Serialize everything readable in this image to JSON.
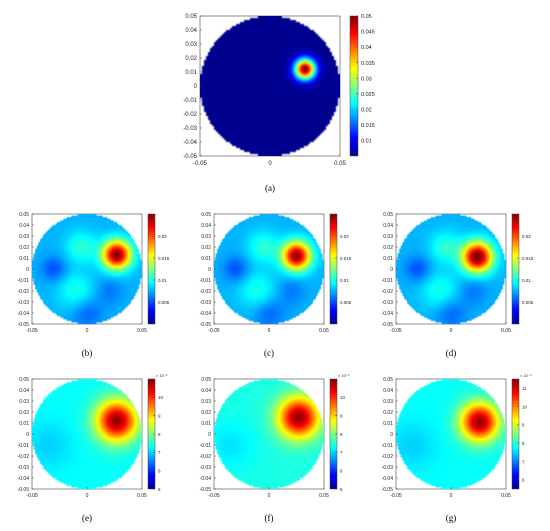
{
  "jet_colors": [
    "#00008f",
    "#0000ff",
    "#0080ff",
    "#00ffff",
    "#80ff80",
    "#ffff00",
    "#ff8000",
    "#ff0000",
    "#800000"
  ],
  "chart_data": [
    {
      "type": "heatmap",
      "caption": "(a)",
      "xlim": [
        -0.05,
        0.05
      ],
      "ylim": [
        -0.05,
        0.05
      ],
      "x_ticks": [
        "-0.05",
        "0",
        "0.05"
      ],
      "y_ticks": [
        "0.05",
        "0.04",
        "0.03",
        "0.02",
        "0.01",
        "0",
        "-0.01",
        "-0.02",
        "-0.03",
        "-0.04",
        "-0.05"
      ],
      "colorbar": {
        "range": [
          0.005,
          0.05
        ],
        "ticks": [
          "0.05",
          "0.045",
          "0.04",
          "0.035",
          "0.03",
          "0.025",
          "0.02",
          "0.015",
          "0.01"
        ],
        "exponent": ""
      },
      "background_level": 0.0,
      "blobs": [
        {
          "x": 0.025,
          "y": 0.012,
          "amp": 1.0,
          "sigma": 0.0052
        }
      ]
    },
    {
      "type": "heatmap",
      "caption": "(b)",
      "xlim": [
        -0.05,
        0.05
      ],
      "ylim": [
        -0.05,
        0.05
      ],
      "x_ticks": [
        "-0.05",
        "0",
        "0.05"
      ],
      "y_ticks": [
        "0.05",
        "0.04",
        "0.03",
        "0.02",
        "0.01",
        "0",
        "-0.01",
        "-0.02",
        "-0.03",
        "-0.04",
        "-0.05"
      ],
      "colorbar": {
        "range": [
          0.0,
          0.025
        ],
        "ticks": [
          "0.02",
          "0.015",
          "0.01",
          "0.005"
        ],
        "exponent": ""
      },
      "background_level": 0.3,
      "blobs": [
        {
          "x": 0.027,
          "y": 0.013,
          "amp": 0.7,
          "sigma": 0.009
        },
        {
          "x": -0.005,
          "y": 0.02,
          "amp": 0.12,
          "sigma": 0.01
        },
        {
          "x": -0.01,
          "y": -0.02,
          "amp": 0.1,
          "sigma": 0.012
        },
        {
          "x": -0.03,
          "y": 0.0,
          "amp": -0.1,
          "sigma": 0.008
        },
        {
          "x": 0.0,
          "y": -0.04,
          "amp": -0.08,
          "sigma": 0.01
        },
        {
          "x": 0.02,
          "y": -0.02,
          "amp": -0.06,
          "sigma": 0.009
        }
      ]
    },
    {
      "type": "heatmap",
      "caption": "(c)",
      "xlim": [
        -0.05,
        0.05
      ],
      "ylim": [
        -0.05,
        0.05
      ],
      "x_ticks": [
        "-0.05",
        "0",
        "0.05"
      ],
      "y_ticks": [
        "0.05",
        "0.04",
        "0.03",
        "0.02",
        "0.01",
        "0",
        "-0.01",
        "-0.02",
        "-0.03",
        "-0.04",
        "-0.05"
      ],
      "colorbar": {
        "range": [
          0.0,
          0.025
        ],
        "ticks": [
          "0.02",
          "0.015",
          "0.01",
          "0.005"
        ],
        "exponent": ""
      },
      "background_level": 0.3,
      "blobs": [
        {
          "x": 0.025,
          "y": 0.012,
          "amp": 0.68,
          "sigma": 0.009
        },
        {
          "x": -0.005,
          "y": 0.02,
          "amp": 0.12,
          "sigma": 0.01
        },
        {
          "x": -0.01,
          "y": -0.02,
          "amp": 0.1,
          "sigma": 0.012
        },
        {
          "x": -0.03,
          "y": 0.0,
          "amp": -0.1,
          "sigma": 0.008
        },
        {
          "x": 0.0,
          "y": -0.04,
          "amp": -0.08,
          "sigma": 0.01
        },
        {
          "x": 0.02,
          "y": -0.02,
          "amp": -0.06,
          "sigma": 0.009
        }
      ]
    },
    {
      "type": "heatmap",
      "caption": "(d)",
      "xlim": [
        -0.05,
        0.05
      ],
      "ylim": [
        -0.05,
        0.05
      ],
      "x_ticks": [
        "-0.05",
        "0",
        "0.05"
      ],
      "y_ticks": [
        "0.05",
        "0.04",
        "0.03",
        "0.02",
        "0.01",
        "0",
        "-0.01",
        "-0.02",
        "-0.03",
        "-0.04",
        "-0.05"
      ],
      "colorbar": {
        "range": [
          0.0,
          0.025
        ],
        "ticks": [
          "0.02",
          "0.015",
          "0.01",
          "0.005"
        ],
        "exponent": ""
      },
      "background_level": 0.3,
      "blobs": [
        {
          "x": 0.024,
          "y": 0.011,
          "amp": 0.72,
          "sigma": 0.0095
        },
        {
          "x": -0.005,
          "y": 0.02,
          "amp": 0.12,
          "sigma": 0.01
        },
        {
          "x": -0.01,
          "y": -0.02,
          "amp": 0.1,
          "sigma": 0.012
        },
        {
          "x": -0.03,
          "y": 0.0,
          "amp": -0.1,
          "sigma": 0.008
        },
        {
          "x": 0.0,
          "y": -0.04,
          "amp": -0.08,
          "sigma": 0.01
        },
        {
          "x": 0.02,
          "y": -0.02,
          "amp": -0.06,
          "sigma": 0.009
        }
      ]
    },
    {
      "type": "heatmap",
      "caption": "(e)",
      "xlim": [
        -0.05,
        0.05
      ],
      "ylim": [
        -0.05,
        0.05
      ],
      "x_ticks": [
        "-0.05",
        "0",
        "0.05"
      ],
      "y_ticks": [
        "0.05",
        "0.04",
        "0.03",
        "0.02",
        "0.01",
        "0",
        "-0.01",
        "-0.02",
        "-0.03",
        "-0.04",
        "-0.05"
      ],
      "colorbar": {
        "range": [
          5,
          11
        ],
        "ticks": [
          "10",
          "9",
          "8",
          "7",
          "6",
          "5"
        ],
        "exponent": "× 10⁻³"
      },
      "background_level": 0.38,
      "blobs": [
        {
          "x": 0.027,
          "y": 0.012,
          "amp": 0.6,
          "sigma": 0.013
        },
        {
          "x": -0.035,
          "y": -0.01,
          "amp": -0.05,
          "sigma": 0.015
        }
      ]
    },
    {
      "type": "heatmap",
      "caption": "(f)",
      "xlim": [
        -0.05,
        0.05
      ],
      "ylim": [
        -0.05,
        0.05
      ],
      "x_ticks": [
        "-0.05",
        "0",
        "0.05"
      ],
      "y_ticks": [
        "0.05",
        "0.04",
        "0.03",
        "0.02",
        "0.01",
        "0",
        "-0.01",
        "-0.02",
        "-0.03",
        "-0.04",
        "-0.05"
      ],
      "colorbar": {
        "range": [
          5,
          11
        ],
        "ticks": [
          "10",
          "9",
          "8",
          "7",
          "6",
          "5"
        ],
        "exponent": "× 10⁻³"
      },
      "background_level": 0.4,
      "blobs": [
        {
          "x": 0.027,
          "y": 0.015,
          "amp": 0.58,
          "sigma": 0.013
        },
        {
          "x": -0.035,
          "y": -0.01,
          "amp": -0.05,
          "sigma": 0.015
        }
      ]
    },
    {
      "type": "heatmap",
      "caption": "(g)",
      "xlim": [
        -0.05,
        0.05
      ],
      "ylim": [
        -0.05,
        0.05
      ],
      "x_ticks": [
        "-0.05",
        "0",
        "0.05"
      ],
      "y_ticks": [
        "0.05",
        "0.04",
        "0.03",
        "0.02",
        "0.01",
        "0",
        "-0.01",
        "-0.02",
        "-0.03",
        "-0.04",
        "-0.05"
      ],
      "colorbar": {
        "range": [
          5.5,
          11.5
        ],
        "ticks": [
          "11",
          "10",
          "9",
          "8",
          "7",
          "6"
        ],
        "exponent": "× 10⁻³"
      },
      "background_level": 0.38,
      "blobs": [
        {
          "x": 0.026,
          "y": 0.011,
          "amp": 0.6,
          "sigma": 0.012
        },
        {
          "x": -0.035,
          "y": -0.01,
          "amp": -0.05,
          "sigma": 0.015
        }
      ]
    }
  ]
}
